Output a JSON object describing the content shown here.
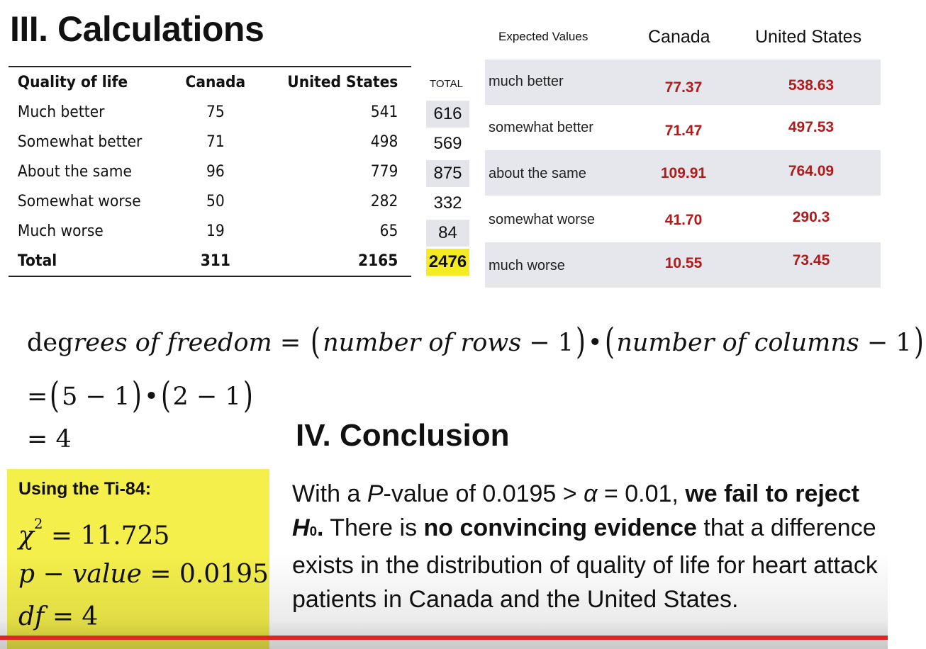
{
  "calc": {
    "title": "III. Calculations",
    "observed": {
      "headers": [
        "Quality of life",
        "Canada",
        "United States"
      ],
      "rows": [
        [
          "Much better",
          "75",
          "541"
        ],
        [
          "Somewhat better",
          "71",
          "498"
        ],
        [
          "About the same",
          "96",
          "779"
        ],
        [
          "Somewhat worse",
          "50",
          "282"
        ],
        [
          "Much worse",
          "19",
          "65"
        ]
      ],
      "total_row": [
        "Total",
        "311",
        "2165"
      ]
    },
    "totals": {
      "header": "TOTAL",
      "values": [
        "616",
        "569",
        "875",
        "332",
        "84"
      ],
      "grand": "2476"
    },
    "expected": {
      "header_label": "Expected Values",
      "header_canada": "Canada",
      "header_us": "United States",
      "rows": [
        [
          "much better",
          "77.37",
          "538.63"
        ],
        [
          "somewhat better",
          "71.47",
          "497.53"
        ],
        [
          "about the same",
          "109.91",
          "764.09"
        ],
        [
          "somewhat worse",
          "41.70",
          "290.3"
        ],
        [
          "much worse",
          "10.55",
          "73.45"
        ]
      ]
    }
  },
  "dof": {
    "line1_deg": "deg",
    "line1_rees": "rees  of  freedom",
    "line1_eq": " = ",
    "line1_rows": "number of   rows",
    "line1_minus_rows": " − 1",
    "line1_dot": "•",
    "line1_cols": "number of   columns",
    "line1_minus_cols": " − 1",
    "line2_eq": "=",
    "line2_a": "5 − 1",
    "line2_dot": "•",
    "line2_b": "2 − 1",
    "line3": "= 4"
  },
  "ti84": {
    "title": "Using the Ti-84:",
    "chi_symbol": "χ",
    "chi_exp": "2",
    "chi_value": " = 11.725",
    "p_label": "p − value",
    "p_value": " = 0.0195",
    "df_label": "df",
    "df_value": " = 4"
  },
  "conclusion": {
    "title": "IV. Conclusion",
    "t1": "With a ",
    "t2": "P",
    "t3": "-value of 0.0195 > ",
    "t4": "α",
    "t5": " = 0.01, ",
    "t6": "we fail to reject ",
    "t7": "H",
    "t8": "0",
    "t9": ".",
    "t10": " There is ",
    "t11": "no convincing evidence",
    "t12": " that a difference exists in the distribution of quality of life for heart attack patients in Canada and the United States."
  },
  "progress": {
    "fraction": 1.0
  },
  "colors": {
    "highlight": "#f4ec21",
    "expected_value": "#b01c1c",
    "shade": "#e4e5ea",
    "progress": "#e32222"
  }
}
